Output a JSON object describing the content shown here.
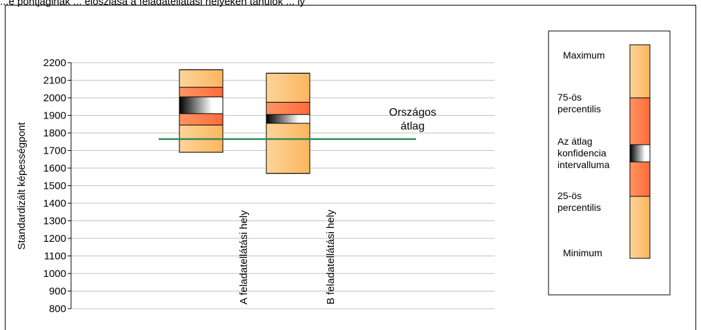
{
  "caption_fragment": "...e pontjaginak ... eloszlása a feladatellátási helyeken tanulók ... ly",
  "chart_data": {
    "type": "boxplot",
    "ylabel": "Standardizált képességpont",
    "ylim": [
      800,
      2200
    ],
    "yticks": [
      800,
      900,
      1000,
      1100,
      1200,
      1300,
      1400,
      1500,
      1600,
      1700,
      1800,
      1900,
      2000,
      2100,
      2200
    ],
    "grid": true,
    "categories": [
      "A feladatellátási hely",
      "B feladatellátási hely"
    ],
    "boxes": [
      {
        "category": "A feladatellátási hely",
        "min": 1690,
        "p25": 1845,
        "ci_low": 1910,
        "ci_high": 2005,
        "p75": 2060,
        "max": 2160
      },
      {
        "category": "B feladatellátási hely",
        "min": 1570,
        "p25": 1860,
        "ci_low": 1855,
        "ci_high": 1905,
        "p75": 1975,
        "max": 2140
      }
    ],
    "reference_line": {
      "label": "Országos átlag",
      "label_lines": [
        "Országos",
        "átlag"
      ],
      "value": 1765,
      "color": "#2e8b57"
    },
    "legend": {
      "position": "right",
      "items": [
        {
          "label_lines": [
            "Maximum"
          ]
        },
        {
          "label_lines": [
            "75-ös",
            "percentilis"
          ]
        },
        {
          "label_lines": [
            "Az átlag",
            "konfidencia",
            "intervalluma"
          ]
        },
        {
          "label_lines": [
            "25-ös",
            "percentilis"
          ]
        },
        {
          "label_lines": [
            "Minimum"
          ]
        }
      ]
    },
    "colors": {
      "outer": "#fdb55e",
      "outer_light": "#fbd59a",
      "inner": "#ff6b3a",
      "inner_light": "#ff9562",
      "ci_dark": "#000000",
      "ci_light": "#ffffff",
      "grid": "#c0c0c0"
    }
  }
}
